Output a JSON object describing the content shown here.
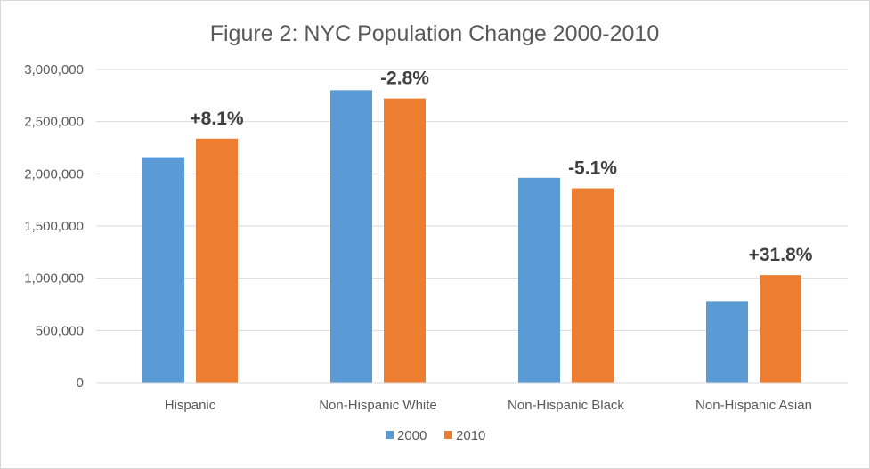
{
  "chart_data": {
    "type": "bar",
    "title": "Figure 2: NYC Population Change 2000-2010",
    "categories": [
      "Hispanic",
      "Non-Hispanic White",
      "Non-Hispanic Black",
      "Non-Hispanic Asian"
    ],
    "series": [
      {
        "name": "2000",
        "color": "#5b9bd5",
        "values": [
          2160000,
          2801000,
          1962000,
          781000
        ]
      },
      {
        "name": "2010",
        "color": "#ed7d31",
        "values": [
          2337000,
          2722000,
          1862000,
          1030000
        ]
      }
    ],
    "data_labels": [
      "+8.1%",
      "-2.8%",
      "-5.1%",
      "+31.8%"
    ],
    "ylim": [
      0,
      3000000
    ],
    "yticks": [
      0,
      500000,
      1000000,
      1500000,
      2000000,
      2500000,
      3000000
    ],
    "ytick_labels": [
      "0",
      "500,000",
      "1,000,000",
      "1,500,000",
      "2,000,000",
      "2,500,000",
      "3,000,000"
    ],
    "grid": true,
    "legend_position": "bottom"
  }
}
